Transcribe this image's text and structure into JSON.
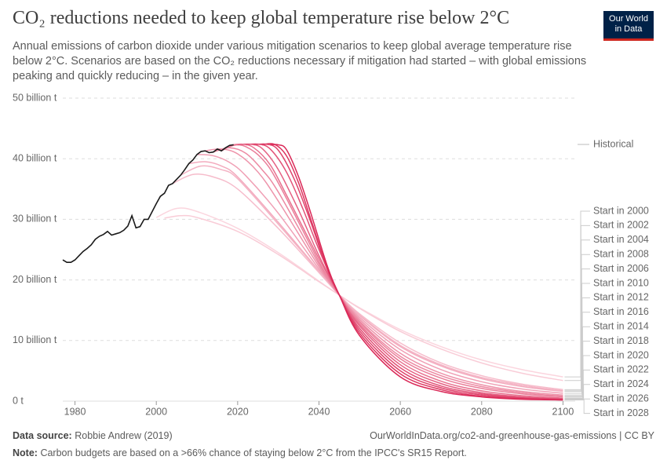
{
  "header": {
    "title": "CO₂ reductions needed to keep global temperature rise below 2°C",
    "subtitle": "Annual emissions of carbon dioxide under various mitigation scenarios to keep global average temperature rise below 2°C. Scenarios are based on the CO₂ reductions necessary if mitigation had started – with global emissions peaking and quickly reducing – in the given year.",
    "logo": [
      "Our World",
      "in Data"
    ]
  },
  "footer": {
    "source_label": "Data source:",
    "source": "Robbie Andrew (2019)",
    "url": "OurWorldInData.org/co2-and-greenhouse-gas-emissions | CC BY",
    "note_label": "Note:",
    "note": "Carbon budgets are based on a >66% chance of staying below 2°C from the IPCC's SR15 Report."
  },
  "chart_data": {
    "type": "line",
    "xlim": [
      1977,
      2103
    ],
    "xticks": [
      1980,
      2000,
      2020,
      2040,
      2060,
      2080,
      2100
    ],
    "ylim": [
      0,
      50
    ],
    "yticks": [
      {
        "value": 0,
        "label": "0 t"
      },
      {
        "value": 10,
        "label": "10 billion t"
      },
      {
        "value": 20,
        "label": "20 billion t"
      },
      {
        "value": 30,
        "label": "30 billion t"
      },
      {
        "value": 40,
        "label": "40 billion t"
      },
      {
        "value": 50,
        "label": "50 billion t"
      }
    ],
    "grid": true,
    "series": [
      {
        "name": "Historical",
        "color": "#1a1a1a",
        "x": [
          1977,
          1978,
          1979,
          1980,
          1981,
          1982,
          1983,
          1984,
          1985,
          1986,
          1987,
          1988,
          1989,
          1990,
          1991,
          1992,
          1993,
          1994,
          1995,
          1996,
          1997,
          1998,
          1999,
          2000,
          2001,
          2002,
          2003,
          2004,
          2005,
          2006,
          2007,
          2008,
          2009,
          2010,
          2011,
          2012,
          2013,
          2014,
          2015,
          2016,
          2017,
          2018,
          2019
        ],
        "values": [
          23.3,
          22.9,
          22.9,
          23.3,
          24.0,
          24.7,
          25.2,
          25.8,
          26.7,
          27.2,
          27.5,
          28.0,
          27.4,
          27.6,
          27.8,
          28.2,
          28.9,
          30.6,
          28.6,
          28.8,
          30.0,
          30.0,
          31.3,
          32.6,
          33.8,
          34.3,
          35.6,
          35.9,
          36.6,
          37.3,
          38.2,
          39.2,
          39.8,
          40.7,
          41.2,
          41.3,
          41.0,
          41.1,
          41.6,
          41.3,
          41.8,
          42.2,
          42.3
        ]
      },
      {
        "name": "Start in 2000",
        "color": "#fbd5de",
        "x": [
          2000,
          2005,
          2010,
          2020,
          2030,
          2040,
          2045,
          2050,
          2060,
          2070,
          2080,
          2090,
          2100
        ],
        "values": [
          30.3,
          31.8,
          31.3,
          28.5,
          24.5,
          19.8,
          17.5,
          15.4,
          11.8,
          9.0,
          6.8,
          5.2,
          4.0
        ]
      },
      {
        "name": "Start in 2002",
        "color": "#f9ccd7",
        "x": [
          2002,
          2006,
          2010,
          2020,
          2030,
          2040,
          2045,
          2050,
          2060,
          2070,
          2080,
          2090,
          2100
        ],
        "values": [
          30.2,
          30.6,
          30.3,
          28.0,
          24.2,
          19.7,
          17.5,
          15.3,
          11.5,
          8.6,
          6.3,
          4.6,
          3.4
        ]
      },
      {
        "name": "Start in 2004",
        "color": "#f6bccb",
        "x": [
          2004,
          2009,
          2014,
          2020,
          2030,
          2040,
          2045,
          2050,
          2060,
          2070,
          2080,
          2090,
          2100
        ],
        "values": [
          35.9,
          37.4,
          37.0,
          35.0,
          28.5,
          21.2,
          17.5,
          14.4,
          9.6,
          6.3,
          4.2,
          2.8,
          1.9
        ]
      },
      {
        "name": "Start in 2008",
        "color": "#f3abbe",
        "x": [
          2008,
          2012,
          2016,
          2020,
          2030,
          2040,
          2045,
          2050,
          2060,
          2070,
          2080,
          2090,
          2100
        ],
        "values": [
          39.2,
          39.5,
          38.8,
          37.0,
          29.5,
          21.5,
          17.5,
          14.1,
          9.0,
          5.8,
          3.7,
          2.4,
          1.6
        ]
      },
      {
        "name": "Start in 2006",
        "color": "#f4b3c4",
        "x": [
          2006,
          2011,
          2016,
          2020,
          2030,
          2040,
          2045,
          2050,
          2060,
          2070,
          2080,
          2090,
          2100
        ],
        "values": [
          37.3,
          38.8,
          38.2,
          36.7,
          29.2,
          21.4,
          17.5,
          14.2,
          9.2,
          6.0,
          3.9,
          2.6,
          1.7
        ]
      },
      {
        "name": "Start in 2010",
        "color": "#f0a0b5",
        "x": [
          2010,
          2014,
          2018,
          2022,
          2030,
          2040,
          2045,
          2050,
          2060,
          2070,
          2080,
          2090,
          2100
        ],
        "values": [
          40.7,
          40.5,
          39.4,
          37.2,
          31.0,
          21.8,
          17.5,
          13.8,
          8.5,
          5.2,
          3.2,
          2.0,
          1.3
        ]
      },
      {
        "name": "Start in 2012",
        "color": "#ee93aa",
        "x": [
          2012,
          2016,
          2020,
          2025,
          2030,
          2040,
          2045,
          2050,
          2060,
          2070,
          2080,
          2090,
          2100
        ],
        "values": [
          41.3,
          41.6,
          40.8,
          37.8,
          33.0,
          22.2,
          17.5,
          13.5,
          7.9,
          4.6,
          2.7,
          1.6,
          1.0
        ]
      },
      {
        "name": "Start in 2016",
        "color": "#ea7f9a",
        "x": [
          2016,
          2019,
          2022,
          2026,
          2030,
          2040,
          2045,
          2050,
          2060,
          2070,
          2080,
          2090,
          2100
        ],
        "values": [
          41.3,
          42.2,
          42.0,
          40.0,
          36.0,
          23.0,
          17.5,
          13.0,
          7.0,
          3.8,
          2.1,
          1.2,
          0.7
        ]
      },
      {
        "name": "Start in 2014",
        "color": "#ec89a2",
        "x": [
          2014,
          2018,
          2022,
          2026,
          2030,
          2040,
          2045,
          2050,
          2060,
          2070,
          2080,
          2090,
          2100
        ],
        "values": [
          41.1,
          41.8,
          40.9,
          38.2,
          34.5,
          22.6,
          17.5,
          13.2,
          7.4,
          4.2,
          2.4,
          1.4,
          0.8
        ]
      },
      {
        "name": "Start in 2018",
        "color": "#e8718f",
        "x": [
          2018,
          2021,
          2024,
          2028,
          2032,
          2040,
          2045,
          2050,
          2060,
          2070,
          2080,
          2090,
          2100
        ],
        "values": [
          42.2,
          42.4,
          41.8,
          39.0,
          34.0,
          23.5,
          17.5,
          12.7,
          6.5,
          3.3,
          1.7,
          0.9,
          0.5
        ]
      },
      {
        "name": "Start in 2020",
        "color": "#e56183",
        "x": [
          2020,
          2023,
          2026,
          2030,
          2035,
          2040,
          2045,
          2050,
          2060,
          2070,
          2080,
          2090,
          2100
        ],
        "values": [
          42.3,
          42.4,
          41.7,
          38.2,
          31.5,
          24.0,
          17.5,
          12.4,
          6.0,
          2.9,
          1.4,
          0.7,
          0.4
        ]
      },
      {
        "name": "Start in 2022",
        "color": "#e25277",
        "x": [
          2022,
          2025,
          2028,
          2032,
          2036,
          2040,
          2045,
          2050,
          2060,
          2070,
          2080,
          2090,
          2100
        ],
        "values": [
          42.3,
          42.4,
          41.6,
          37.8,
          31.8,
          25.0,
          17.5,
          12.0,
          5.5,
          2.5,
          1.2,
          0.6,
          0.3
        ]
      },
      {
        "name": "Start in 2024",
        "color": "#df446c",
        "x": [
          2024,
          2027,
          2030,
          2034,
          2038,
          2042,
          2045,
          2050,
          2060,
          2070,
          2080,
          2090,
          2100
        ],
        "values": [
          42.3,
          42.4,
          41.4,
          36.5,
          29.5,
          21.8,
          17.5,
          11.6,
          5.0,
          2.2,
          1.0,
          0.5,
          0.3
        ]
      },
      {
        "name": "Start in 2026",
        "color": "#dd3661",
        "x": [
          2026,
          2029,
          2032,
          2035,
          2038,
          2042,
          2045,
          2050,
          2060,
          2070,
          2080,
          2090,
          2100
        ],
        "values": [
          42.3,
          42.4,
          40.5,
          36.0,
          30.0,
          22.0,
          17.5,
          11.2,
          4.5,
          1.9,
          0.8,
          0.4,
          0.2
        ]
      },
      {
        "name": "Start in 2028",
        "color": "#da2857",
        "x": [
          2028,
          2030,
          2032,
          2035,
          2038,
          2042,
          2045,
          2050,
          2060,
          2070,
          2080,
          2090,
          2100
        ],
        "values": [
          42.3,
          42.3,
          41.5,
          37.0,
          31.0,
          22.4,
          17.5,
          10.8,
          4.0,
          1.6,
          0.7,
          0.3,
          0.2
        ]
      }
    ]
  }
}
